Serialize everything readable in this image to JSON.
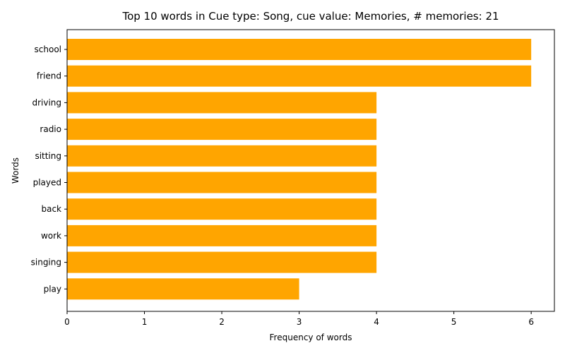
{
  "chart_data": {
    "type": "bar",
    "orientation": "horizontal",
    "title": "Top 10 words in Cue type: Song, cue value: Memories, # memories: 21",
    "xlabel": "Frequency of words",
    "ylabel": "Words",
    "categories": [
      "school",
      "friend",
      "driving",
      "radio",
      "sitting",
      "played",
      "back",
      "work",
      "singing",
      "play"
    ],
    "values": [
      6,
      6,
      4,
      4,
      4,
      4,
      4,
      4,
      4,
      3
    ],
    "xlim": [
      0,
      6.3
    ],
    "xticks": [
      "0",
      "1",
      "2",
      "3",
      "4",
      "5",
      "6"
    ],
    "bar_color": "#FFA500",
    "grid": false,
    "legend": "none"
  }
}
